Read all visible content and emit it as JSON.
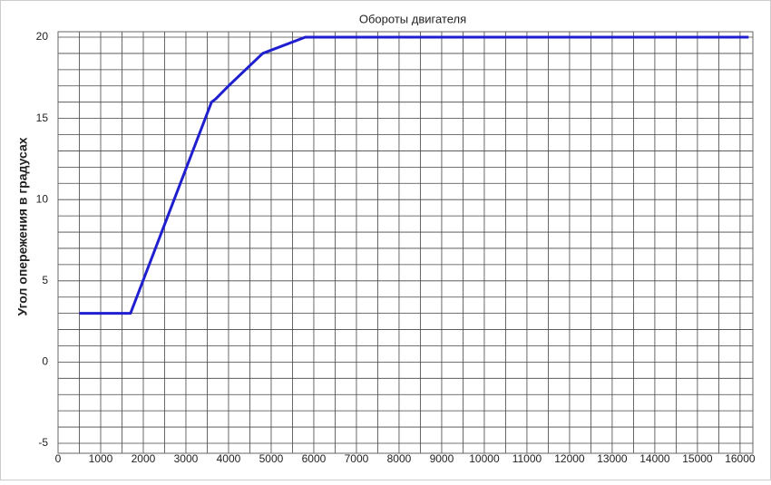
{
  "chart_data": {
    "type": "line",
    "title": "Обороты двигателя",
    "y_label": "Угол опережения в градусах",
    "x": [
      500,
      1700,
      3600,
      3700,
      4000,
      4400,
      4800,
      5000,
      5800,
      16200
    ],
    "series": [
      {
        "color": "#1f1fd0",
        "values": [
          3,
          3,
          16,
          16.2,
          17,
          18,
          19,
          19.2,
          20,
          20
        ]
      }
    ],
    "xlim": [
      0,
      16300
    ],
    "xticks": [
      0,
      1000,
      2000,
      3000,
      4000,
      5000,
      6000,
      7000,
      8000,
      9000,
      10000,
      11000,
      12000,
      13000,
      14000,
      15000,
      16000
    ],
    "ylim": [
      -5,
      20
    ],
    "yticks": [
      -5,
      0,
      5,
      10,
      15,
      20
    ],
    "grid": true,
    "minor_grid": true
  }
}
